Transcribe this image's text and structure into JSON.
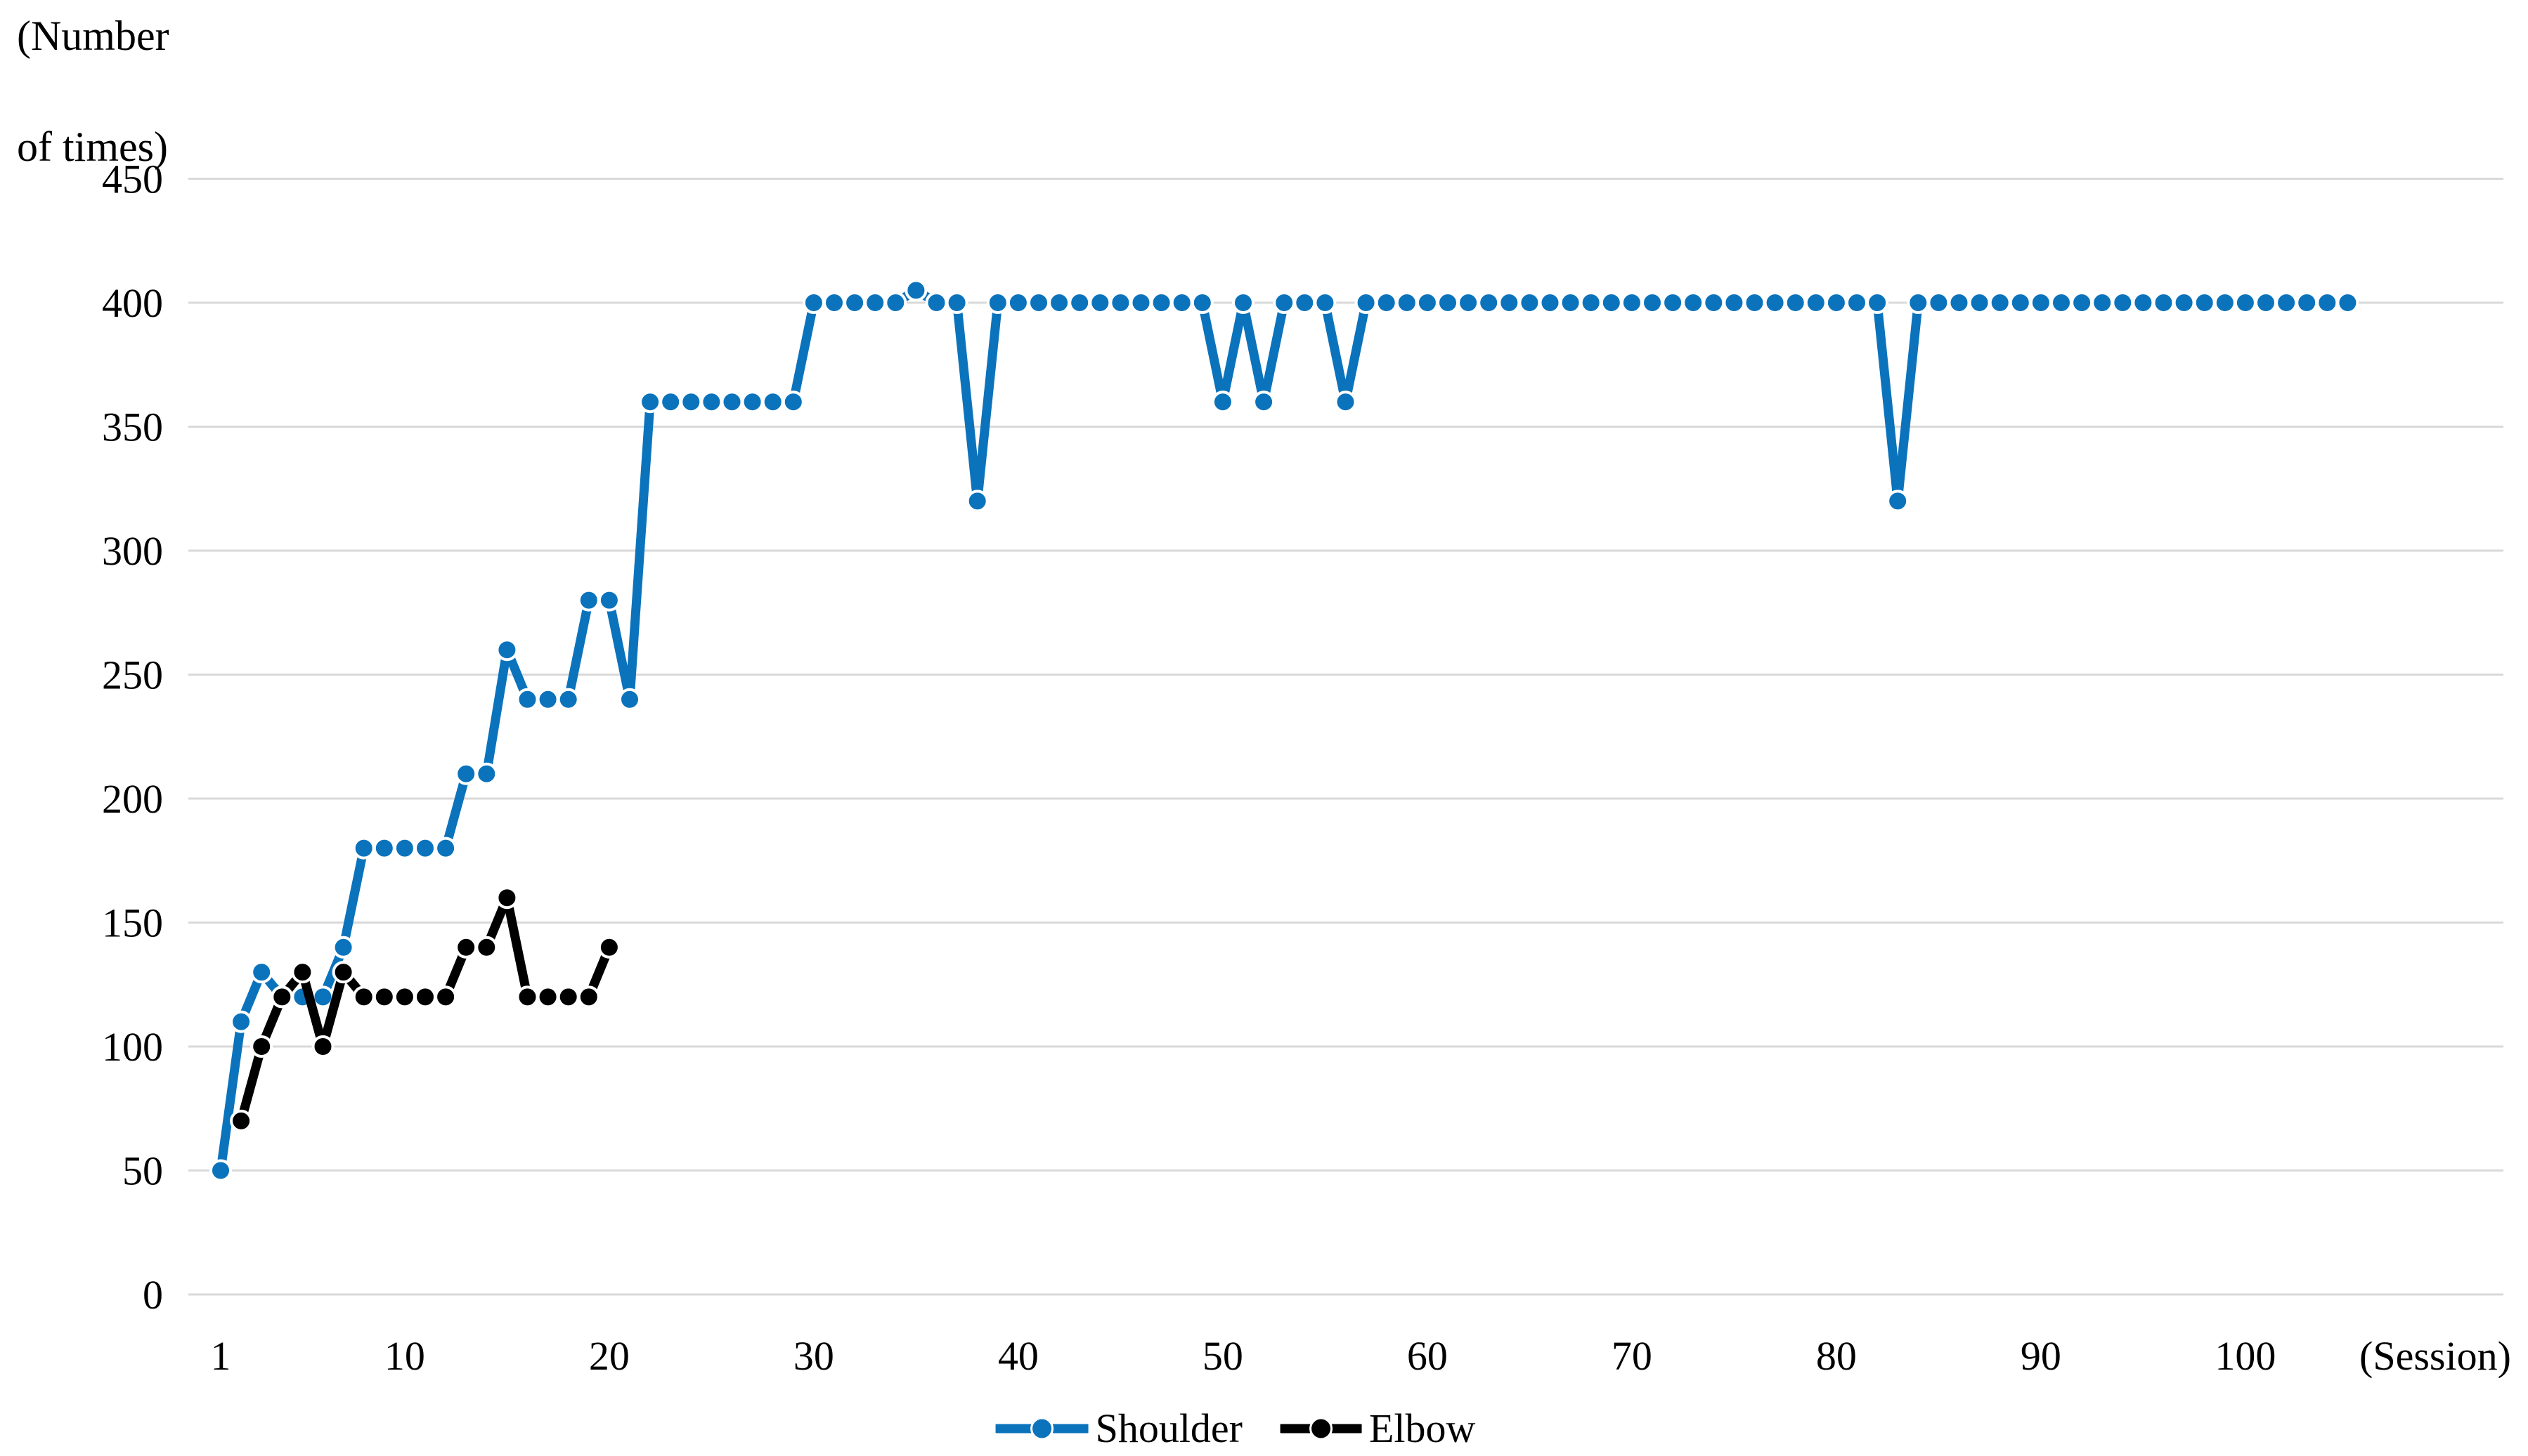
{
  "figure": {
    "y_axis_title_line1": "(Number",
    "y_axis_title_line2": "of times)",
    "x_axis_unit_label": "(Session)"
  },
  "chart_data": {
    "type": "line",
    "title": "",
    "xlabel": "(Session)",
    "ylabel": "(Number of times)",
    "x_ticks": [
      1,
      10,
      20,
      30,
      40,
      50,
      60,
      70,
      80,
      90,
      100
    ],
    "y_ticks": [
      0,
      50,
      100,
      150,
      200,
      250,
      300,
      350,
      400,
      450
    ],
    "xlim": [
      1,
      105
    ],
    "ylim": [
      0,
      450
    ],
    "grid": true,
    "gridline_color": "#d9d9d9",
    "background_color": "#ffffff",
    "legend_position": "bottom-center",
    "marker_style": "circle",
    "series": [
      {
        "name": "Shoulder",
        "color": "#0b73bc",
        "x_start": 1,
        "values": [
          50,
          110,
          130,
          120,
          120,
          120,
          140,
          180,
          180,
          180,
          180,
          180,
          210,
          210,
          260,
          240,
          240,
          240,
          280,
          280,
          240,
          360,
          360,
          360,
          360,
          360,
          360,
          360,
          360,
          400,
          400,
          400,
          400,
          400,
          405,
          400,
          400,
          320,
          400,
          400,
          400,
          400,
          400,
          400,
          400,
          400,
          400,
          400,
          400,
          360,
          400,
          360,
          400,
          400,
          400,
          360,
          400,
          400,
          400,
          400,
          400,
          400,
          400,
          400,
          400,
          400,
          400,
          400,
          400,
          400,
          400,
          400,
          400,
          400,
          400,
          400,
          400,
          400,
          400,
          400,
          400,
          400,
          320,
          400,
          400,
          400,
          400,
          400,
          400,
          400,
          400,
          400,
          400,
          400,
          400,
          400,
          400,
          400,
          400,
          400,
          400,
          400,
          400,
          400,
          400
        ]
      },
      {
        "name": "Elbow",
        "color": "#000000",
        "x_start": 2,
        "values": [
          70,
          100,
          120,
          130,
          100,
          130,
          120,
          120,
          120,
          120,
          120,
          140,
          140,
          160,
          120,
          120,
          120,
          120,
          140
        ]
      }
    ]
  }
}
